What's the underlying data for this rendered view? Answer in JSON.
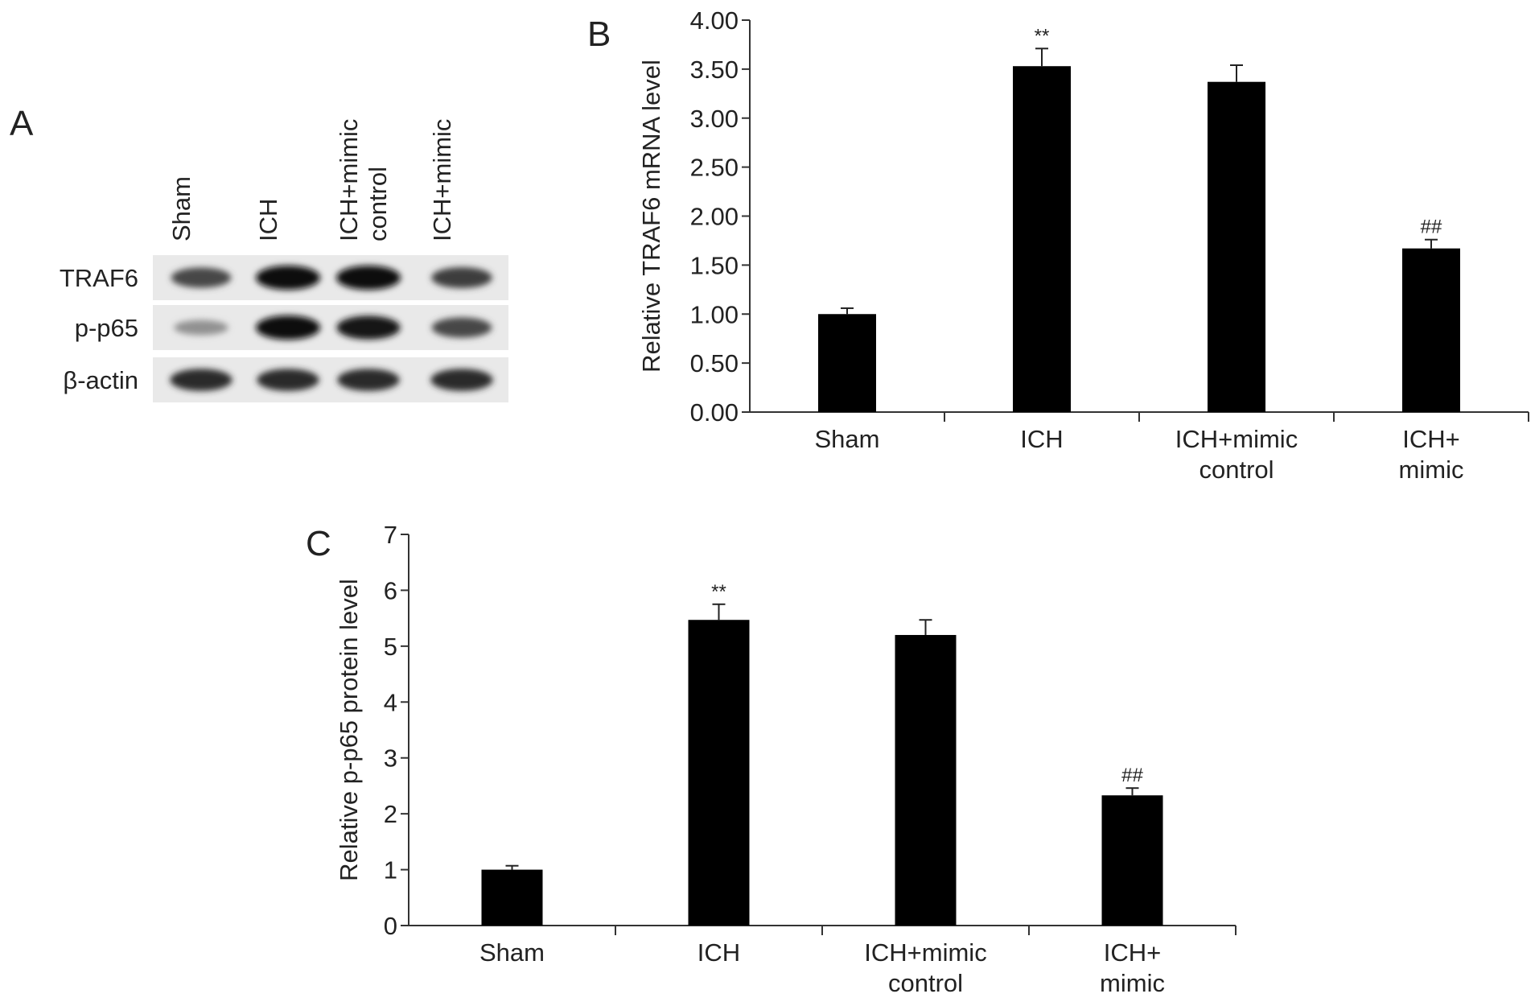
{
  "figure": {
    "panel_labels": [
      "A",
      "B",
      "C"
    ]
  },
  "blot": {
    "lanes": [
      [
        "Sham"
      ],
      [
        "ICH"
      ],
      [
        "ICH+mimic",
        "control"
      ],
      [
        "ICH+mimic"
      ]
    ],
    "rows": [
      {
        "label": "TRAF6",
        "intensities": [
          0.7,
          1.0,
          1.0,
          0.75
        ]
      },
      {
        "label": "p-p65",
        "intensities": [
          0.3,
          1.0,
          0.95,
          0.7
        ]
      },
      {
        "label": "β-actin",
        "intensities": [
          0.85,
          0.85,
          0.85,
          0.85
        ]
      }
    ]
  },
  "chart_data": [
    {
      "type": "bar",
      "title": "",
      "ylabel": "Relative TRAF6 mRNA level",
      "xlabel": "",
      "categories": [
        [
          "Sham"
        ],
        [
          "ICH"
        ],
        [
          "ICH+mimic",
          "control"
        ],
        [
          "ICH+",
          "mimic"
        ]
      ],
      "values": [
        1.0,
        3.53,
        3.37,
        1.67
      ],
      "errors": [
        0.06,
        0.18,
        0.17,
        0.09
      ],
      "annotations": [
        "",
        "**",
        "",
        "##"
      ],
      "ylim": [
        0,
        4
      ],
      "yticks": [
        "0.00",
        "0.50",
        "1.00",
        "1.50",
        "2.00",
        "2.50",
        "3.00",
        "3.50",
        "4.00"
      ],
      "color": "#000000"
    },
    {
      "type": "bar",
      "title": "",
      "ylabel": "Relative p-p65 protein level",
      "xlabel": "",
      "categories": [
        [
          "Sham"
        ],
        [
          "ICH"
        ],
        [
          "ICH+mimic",
          "control"
        ],
        [
          "ICH+",
          "mimic"
        ]
      ],
      "values": [
        1.0,
        5.47,
        5.2,
        2.33
      ],
      "errors": [
        0.07,
        0.28,
        0.27,
        0.13
      ],
      "annotations": [
        "",
        "**",
        "",
        "##"
      ],
      "ylim": [
        0,
        7
      ],
      "yticks": [
        "0",
        "1",
        "2",
        "3",
        "4",
        "5",
        "6",
        "7"
      ],
      "color": "#000000"
    }
  ]
}
